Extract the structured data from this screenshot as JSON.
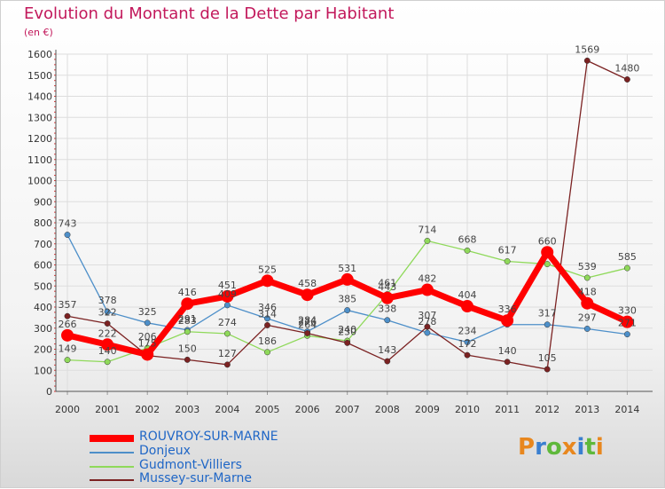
{
  "title": "Evolution du Montant de la Dette par Habitant",
  "subtitle": "(en €)",
  "logo": {
    "letters": [
      "P",
      "r",
      "o",
      "x",
      "i",
      "t",
      "i"
    ],
    "colors": [
      "#e8871e",
      "#3a7fd0",
      "#5fb83b",
      "#e8871e",
      "#3a7fd0",
      "#5fb83b",
      "#e8871e"
    ]
  },
  "chart_data": {
    "type": "line",
    "x": [
      "2000",
      "2001",
      "2002",
      "2003",
      "2004",
      "2005",
      "2006",
      "2007",
      "2008",
      "2009",
      "2010",
      "2011",
      "2012",
      "2013",
      "2014"
    ],
    "ylim": [
      0,
      1600
    ],
    "yticks": [
      0,
      100,
      200,
      300,
      400,
      500,
      600,
      700,
      800,
      900,
      1000,
      1100,
      1200,
      1300,
      1400,
      1500,
      1600
    ],
    "grid": true,
    "series": [
      {
        "name": "ROUVROY-SUR-MARNE",
        "color": "#ff0000",
        "width": 7,
        "marker": 7,
        "values": [
          266,
          222,
          175,
          416,
          451,
          525,
          458,
          531,
          443,
          482,
          404,
          336,
          660,
          418,
          330
        ],
        "labels": [
          "266",
          "222",
          "175",
          "416",
          "451",
          "525",
          "458",
          "531",
          "443",
          "482",
          "404",
          "336",
          "660",
          "418",
          "330"
        ]
      },
      {
        "name": "Donjeux",
        "color": "#4d8fc9",
        "width": 1.3,
        "marker": 3.2,
        "values": [
          743,
          378,
          325,
          291,
          409,
          346,
          284,
          385,
          338,
          278,
          234,
          317,
          317,
          297,
          271
        ],
        "labels": [
          "743",
          "378",
          "325",
          "291",
          "409",
          "346",
          "284",
          "385",
          "338",
          "278",
          "234",
          "",
          "317",
          "297",
          "271"
        ]
      },
      {
        "name": "Gudmont-Villiers",
        "color": "#8fd95a",
        "width": 1.3,
        "marker": 3.2,
        "values": [
          149,
          140,
          206,
          283,
          274,
          186,
          264,
          240,
          461,
          714,
          668,
          617,
          604,
          539,
          585
        ],
        "labels": [
          "149",
          "140",
          "206",
          "283",
          "274",
          "186",
          "264",
          "240",
          "461",
          "714",
          "668",
          "617",
          "",
          "539",
          "585"
        ]
      },
      {
        "name": "Mussey-sur-Marne",
        "color": "#7b2222",
        "width": 1.3,
        "marker": 3.2,
        "values": [
          357,
          322,
          170,
          150,
          127,
          314,
          276,
          230,
          143,
          307,
          172,
          140,
          105,
          1569,
          1480
        ],
        "labels": [
          "357",
          "322",
          "",
          "150",
          "127",
          "314",
          "276",
          "230",
          "143",
          "307",
          "172",
          "140",
          "105",
          "1569",
          "1480"
        ]
      }
    ]
  }
}
